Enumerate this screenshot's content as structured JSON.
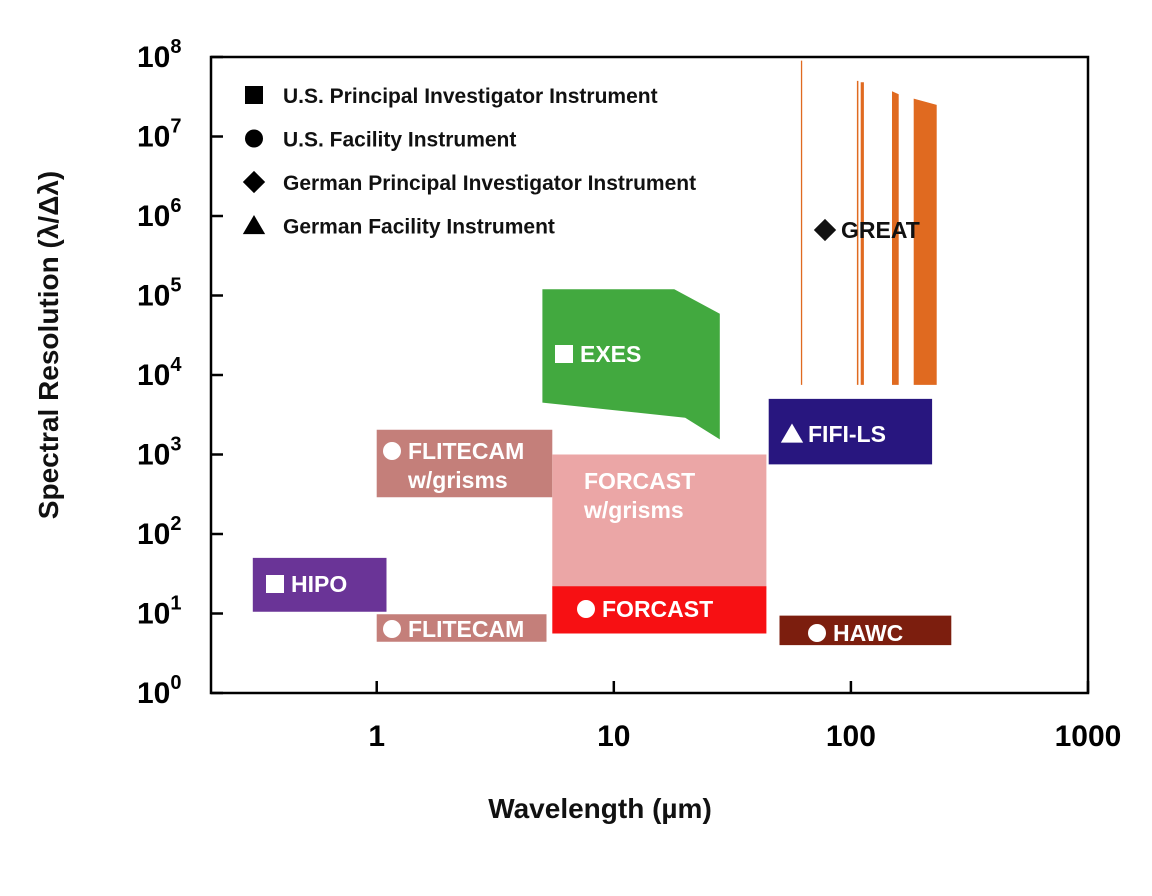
{
  "chart_data": {
    "type": "area",
    "title": "",
    "xlabel": "Wavelength (µm)",
    "ylabel": "Spectral Resolution (λ/Δλ)",
    "x_scale": "log",
    "y_scale": "log",
    "xlim": [
      0.2,
      1000
    ],
    "ylim": [
      1,
      100000000
    ],
    "x_ticks": [
      {
        "value": 1,
        "label": "1"
      },
      {
        "value": 10,
        "label": "10"
      },
      {
        "value": 100,
        "label": "100"
      },
      {
        "value": 1000,
        "label": "1000"
      }
    ],
    "y_ticks": [
      {
        "value": 1,
        "base": "10",
        "exp": "0"
      },
      {
        "value": 10,
        "base": "10",
        "exp": "1"
      },
      {
        "value": 100,
        "base": "10",
        "exp": "2"
      },
      {
        "value": 1000,
        "base": "10",
        "exp": "3"
      },
      {
        "value": 10000,
        "base": "10",
        "exp": "4"
      },
      {
        "value": 100000,
        "base": "10",
        "exp": "5"
      },
      {
        "value": 1000000,
        "base": "10",
        "exp": "6"
      },
      {
        "value": 10000000,
        "base": "10",
        "exp": "7"
      },
      {
        "value": 100000000,
        "base": "10",
        "exp": "8"
      }
    ],
    "grid": false,
    "legend_position": "top-left",
    "legend": [
      {
        "marker": "square",
        "label": "U.S. Principal Investigator Instrument"
      },
      {
        "marker": "circle",
        "label": "U.S. Facility Instrument"
      },
      {
        "marker": "diamond",
        "label": "German Principal Investigator Instrument"
      },
      {
        "marker": "triangle",
        "label": "German Facility Instrument"
      }
    ],
    "series": [
      {
        "name": "HIPO",
        "lines": [
          "HIPO"
        ],
        "marker": "square",
        "color": "#6a3497",
        "label_color": "#ffffff",
        "region": [
          [
            0.3,
            10.5
          ],
          [
            1.1,
            10.5
          ],
          [
            1.1,
            50
          ],
          [
            0.3,
            50
          ]
        ]
      },
      {
        "name": "FLITECAM",
        "lines": [
          "FLITECAM"
        ],
        "marker": "circle",
        "color": "#c47f7a",
        "label_color": "#ffffff",
        "region": [
          [
            1.0,
            4.4
          ],
          [
            5.2,
            4.4
          ],
          [
            5.2,
            9.8
          ],
          [
            1.0,
            9.8
          ]
        ]
      },
      {
        "name": "FLITECAM w/grisms",
        "lines": [
          "FLITECAM",
          "w/grisms"
        ],
        "marker": "circle",
        "color": "#c47f7a",
        "label_color": "#ffffff",
        "region": [
          [
            1.0,
            290
          ],
          [
            5.5,
            290
          ],
          [
            5.5,
            2050
          ],
          [
            1.0,
            2050
          ]
        ]
      },
      {
        "name": "FORCAST w/grisms",
        "lines": [
          "FORCAST",
          "w/grisms"
        ],
        "marker": "none",
        "color": "#eba6a6",
        "label_color": "#ffffff",
        "region": [
          [
            5.5,
            20
          ],
          [
            44,
            20
          ],
          [
            44,
            1000
          ],
          [
            5.5,
            1000
          ]
        ]
      },
      {
        "name": "FORCAST",
        "lines": [
          "FORCAST"
        ],
        "marker": "circle",
        "color": "#f71013",
        "label_color": "#ffffff",
        "region": [
          [
            5.5,
            5.6
          ],
          [
            44,
            5.6
          ],
          [
            44,
            22
          ],
          [
            5.5,
            22
          ]
        ]
      },
      {
        "name": "EXES",
        "lines": [
          "EXES"
        ],
        "marker": "square",
        "color": "#42a93f",
        "label_color": "#ffffff",
        "region": [
          [
            5,
            4500
          ],
          [
            20,
            2900
          ],
          [
            28,
            1550
          ],
          [
            28,
            59000
          ],
          [
            18,
            120000
          ],
          [
            5,
            120000
          ]
        ]
      },
      {
        "name": "FIFI-LS",
        "lines": [
          "FIFI-LS"
        ],
        "marker": "triangle",
        "color": "#28167f",
        "label_color": "#ffffff",
        "region": [
          [
            45,
            750
          ],
          [
            220,
            750
          ],
          [
            220,
            5000
          ],
          [
            45,
            5000
          ]
        ]
      },
      {
        "name": "HAWC",
        "lines": [
          "HAWC"
        ],
        "marker": "circle",
        "color": "#7c1e0e",
        "label_color": "#ffffff",
        "region": [
          [
            50,
            4
          ],
          [
            265,
            4
          ],
          [
            265,
            9.4
          ],
          [
            50,
            9.4
          ]
        ]
      },
      {
        "name": "GREAT",
        "lines": [
          "GREAT"
        ],
        "marker": "diamond",
        "color": "#e06a20",
        "label_color": "#111111",
        "bands": [
          {
            "x": [
              61.5,
              62.3
            ],
            "y_low": 7500,
            "y_high": 90000000
          },
          {
            "x": [
              106,
              107.5
            ],
            "y_low": 7500,
            "y_high": 50000000
          },
          {
            "x": [
              110,
              113.5
            ],
            "y_low": 7500,
            "y_high": 48000000
          },
          {
            "x": [
              149,
              159
            ],
            "y_low": 7500,
            "y_high": 37000000,
            "y_high_right": 34000000
          },
          {
            "x": [
              184,
              230
            ],
            "y_low": 7500,
            "y_high": 30000000,
            "y_high_right": 25000000
          }
        ]
      }
    ]
  }
}
